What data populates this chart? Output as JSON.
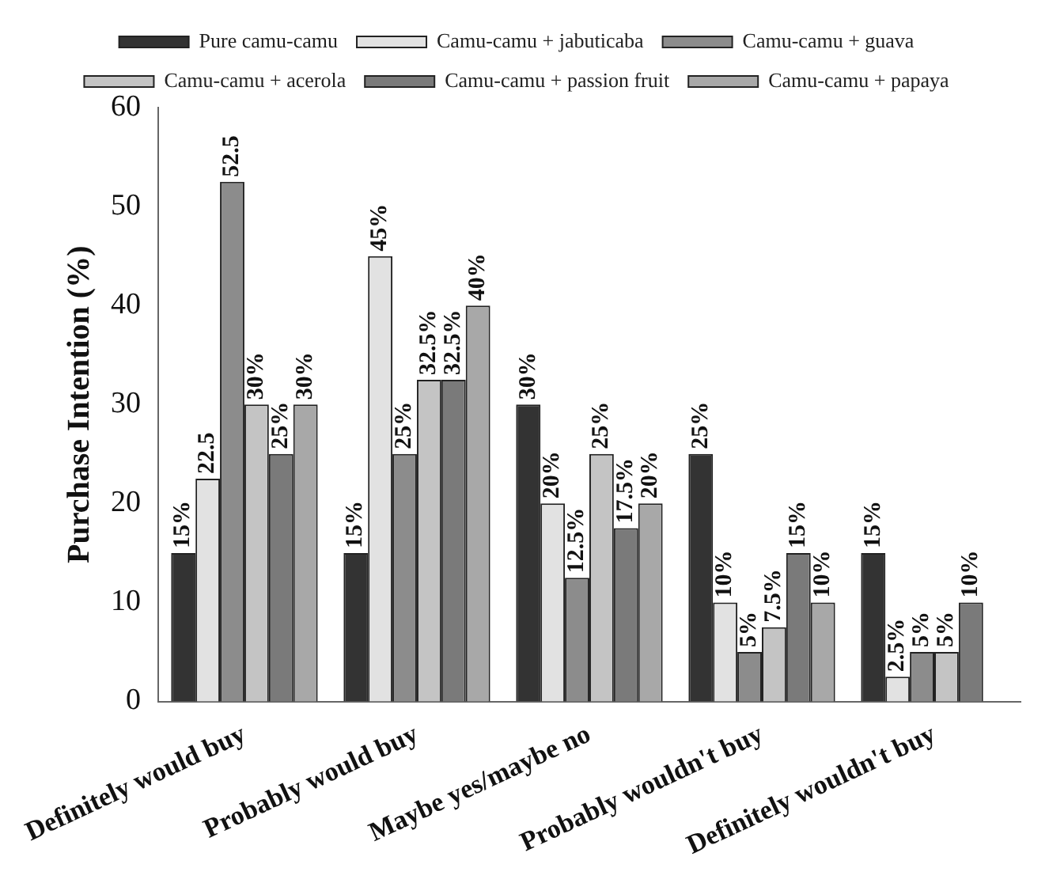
{
  "chart_data": {
    "type": "bar",
    "ylabel": "Purchase Intention (%)",
    "categories": [
      "Definitely would buy",
      "Probably would buy",
      "Maybe yes/maybe no",
      "Probably wouldn't buy",
      "Definitely wouldn't buy"
    ],
    "series": [
      {
        "name": "Pure camu-camu",
        "color": "#333333",
        "values": [
          15,
          15,
          30,
          25,
          15
        ],
        "value_labels": [
          "15%",
          "15%",
          "30%",
          "25%",
          "15%"
        ]
      },
      {
        "name": "Camu-camu + jabuticaba",
        "color": "#e2e2e2",
        "values": [
          22.5,
          45,
          20,
          10,
          2.5
        ],
        "value_labels": [
          "22.5",
          "45%",
          "20%",
          "10%",
          "2.5%"
        ]
      },
      {
        "name": "Camu-camu + guava",
        "color": "#8c8c8c",
        "values": [
          52.5,
          25,
          12.5,
          5,
          5
        ],
        "value_labels": [
          "52.5",
          "25%",
          "12.5%",
          "5%",
          "5%"
        ]
      },
      {
        "name": "Camu-camu + acerola",
        "color": "#c4c4c4",
        "values": [
          30,
          32.5,
          25,
          7.5,
          5
        ],
        "value_labels": [
          "30%",
          "32.5%",
          "25%",
          "7.5%",
          "5%"
        ]
      },
      {
        "name": "Camu-camu + passion fruit",
        "color": "#7a7a7a",
        "values": [
          25,
          32.5,
          17.5,
          15,
          10
        ],
        "value_labels": [
          "25%",
          "32.5%",
          "17.5%",
          "15%",
          "10%"
        ]
      },
      {
        "name": "Camu-camu + papaya",
        "color": "#a8a8a8",
        "values": [
          30,
          40,
          20,
          10,
          null
        ],
        "value_labels": [
          "30%",
          "40%",
          "20%",
          "10%",
          null
        ]
      }
    ],
    "ylim": [
      0,
      60
    ],
    "yticks": [
      0,
      10,
      20,
      30,
      40,
      50,
      60
    ],
    "grid": false,
    "legend": "top"
  }
}
